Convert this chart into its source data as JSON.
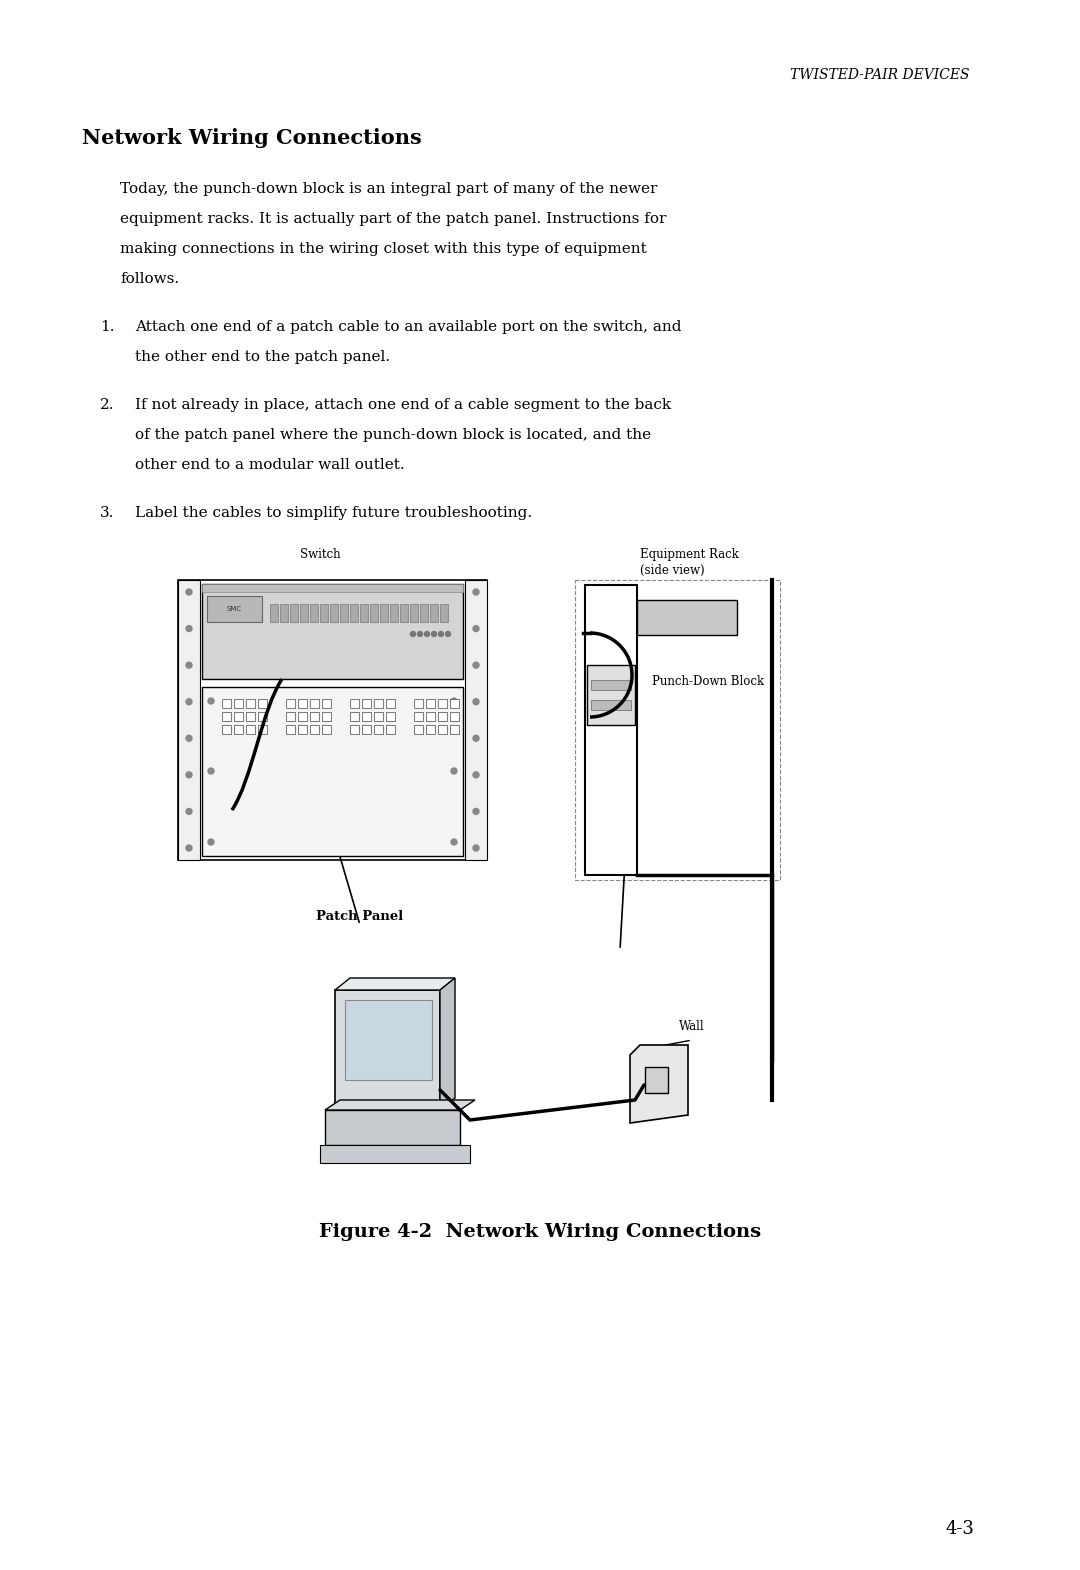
{
  "page_title": "TWISTED-PAIR DEVICES",
  "section_title": "Network Wiring Connections",
  "fig_caption": "Figure 4-2  Network Wiring Connections",
  "page_number": "4-3",
  "bg_color": "#ffffff",
  "text_color": "#000000",
  "intro_lines": [
    "Today, the punch-down block is an integral part of many of the newer",
    "equipment racks. It is actually part of the patch panel. Instructions for",
    "making connections in the wiring closet with this type of equipment",
    "follows."
  ],
  "item1_lines": [
    "Attach one end of a patch cable to an available port on the switch, and",
    "the other end to the patch panel."
  ],
  "item2_lines": [
    "If not already in place, attach one end of a cable segment to the back",
    "of the patch panel where the punch-down block is located, and the",
    "other end to a modular wall outlet."
  ],
  "item3_line": "Label the cables to simplify future troubleshooting.",
  "header_fontsize": 10,
  "title_fontsize": 15,
  "body_fontsize": 11,
  "caption_fontsize": 14,
  "page_num_fontsize": 13,
  "label_fontsize": 8.5
}
